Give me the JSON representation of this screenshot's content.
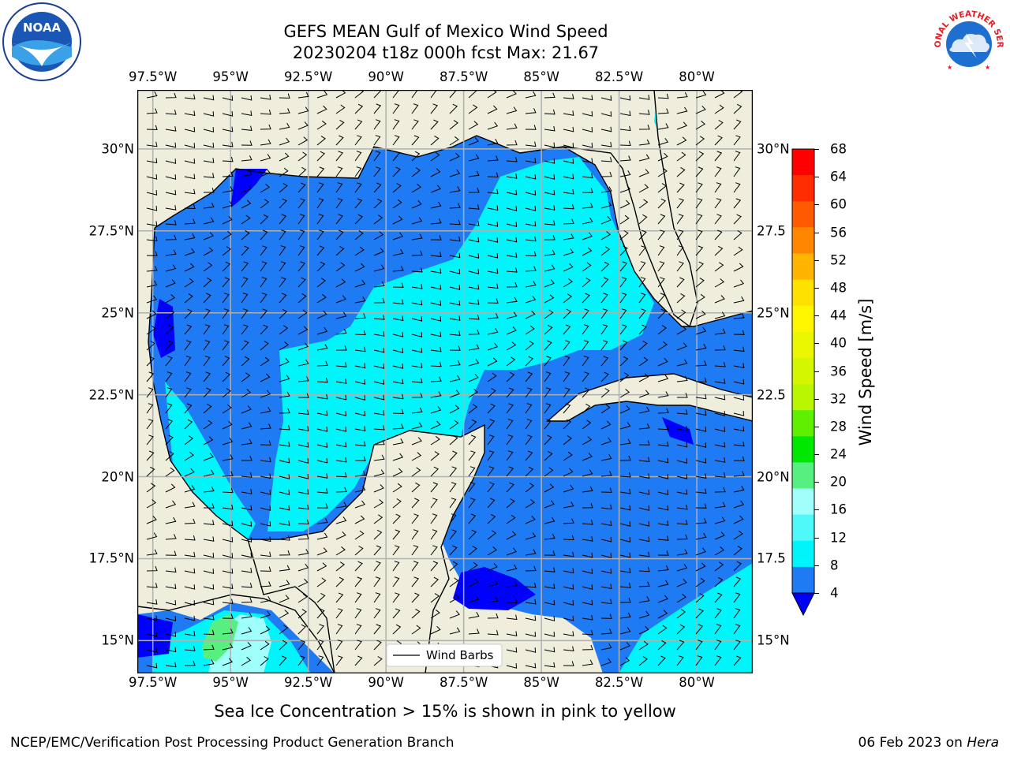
{
  "title": {
    "line1": "GEFS MEAN Gulf of Mexico Wind Speed",
    "line2": "20230204 t18z 000h fcst   Max: 21.67"
  },
  "map": {
    "lon_range": [
      -98,
      -78.2
    ],
    "lat_range": [
      14,
      31.8
    ],
    "lon_ticks": [
      "97.5°W",
      "95°W",
      "92.5°W",
      "90°W",
      "87.5°W",
      "85°W",
      "82.5°W",
      "80°W"
    ],
    "lon_values": [
      -97.5,
      -95,
      -92.5,
      -90,
      -87.5,
      -85,
      -82.5,
      -80
    ],
    "lat_ticks_left": [
      "30°N",
      "27.5°N",
      "25°N",
      "22.5°N",
      "20°N",
      "17.5°N",
      "15°N"
    ],
    "lat_ticks_right": [
      "30°N",
      "27.5",
      "25°N",
      "22.5",
      "20°N",
      "17.5",
      "15°N"
    ],
    "lat_values": [
      30,
      27.5,
      25,
      22.5,
      20,
      17.5,
      15
    ],
    "grid": true,
    "colors": {
      "land": "#efeddb",
      "c4_8": "#1f7bf3",
      "c8_12": "#00f5fa",
      "c12_16": "#4ff9fa",
      "c16_20": "#9ffffa",
      "c20_24": "#57f080",
      "c0_4": "#0000ff"
    }
  },
  "legend": {
    "label": "Wind Barbs"
  },
  "colorbar": {
    "label": "Wind Speed [m/s]",
    "ticks": [
      "68",
      "64",
      "60",
      "56",
      "52",
      "48",
      "44",
      "40",
      "36",
      "32",
      "28",
      "24",
      "20",
      "16",
      "12",
      "8",
      "4"
    ],
    "colors": [
      "#ff0000",
      "#ff2d00",
      "#ff5a00",
      "#ff8700",
      "#ffb400",
      "#ffe100",
      "#fff700",
      "#eaf700",
      "#d4f700",
      "#b9f700",
      "#5ef000",
      "#00e800",
      "#57f080",
      "#9ffffa",
      "#4ff9fa",
      "#00f5fa",
      "#1f7bf3"
    ],
    "extend_color": "#0000ff"
  },
  "caption": "Sea Ice Concentration > 15% is shown in pink to yellow",
  "footer": {
    "left": "NCEP/EMC/Verification Post Processing Product Generation Branch",
    "right_prefix": "06 Feb 2023 on ",
    "right_host": "Hera"
  },
  "logos": {
    "left": "NOAA",
    "right": "NATIONAL WEATHER SERVICE"
  },
  "chart_data": {
    "type": "map",
    "title": "GEFS MEAN Gulf of Mexico Wind Speed",
    "subtitle": "20230204 t18z 000h fcst   Max: 21.67",
    "max_value": 21.67,
    "units": "m/s",
    "colorbar_levels": [
      4,
      8,
      12,
      16,
      20,
      24,
      28,
      32,
      36,
      40,
      44,
      48,
      52,
      56,
      60,
      64,
      68
    ]
  }
}
